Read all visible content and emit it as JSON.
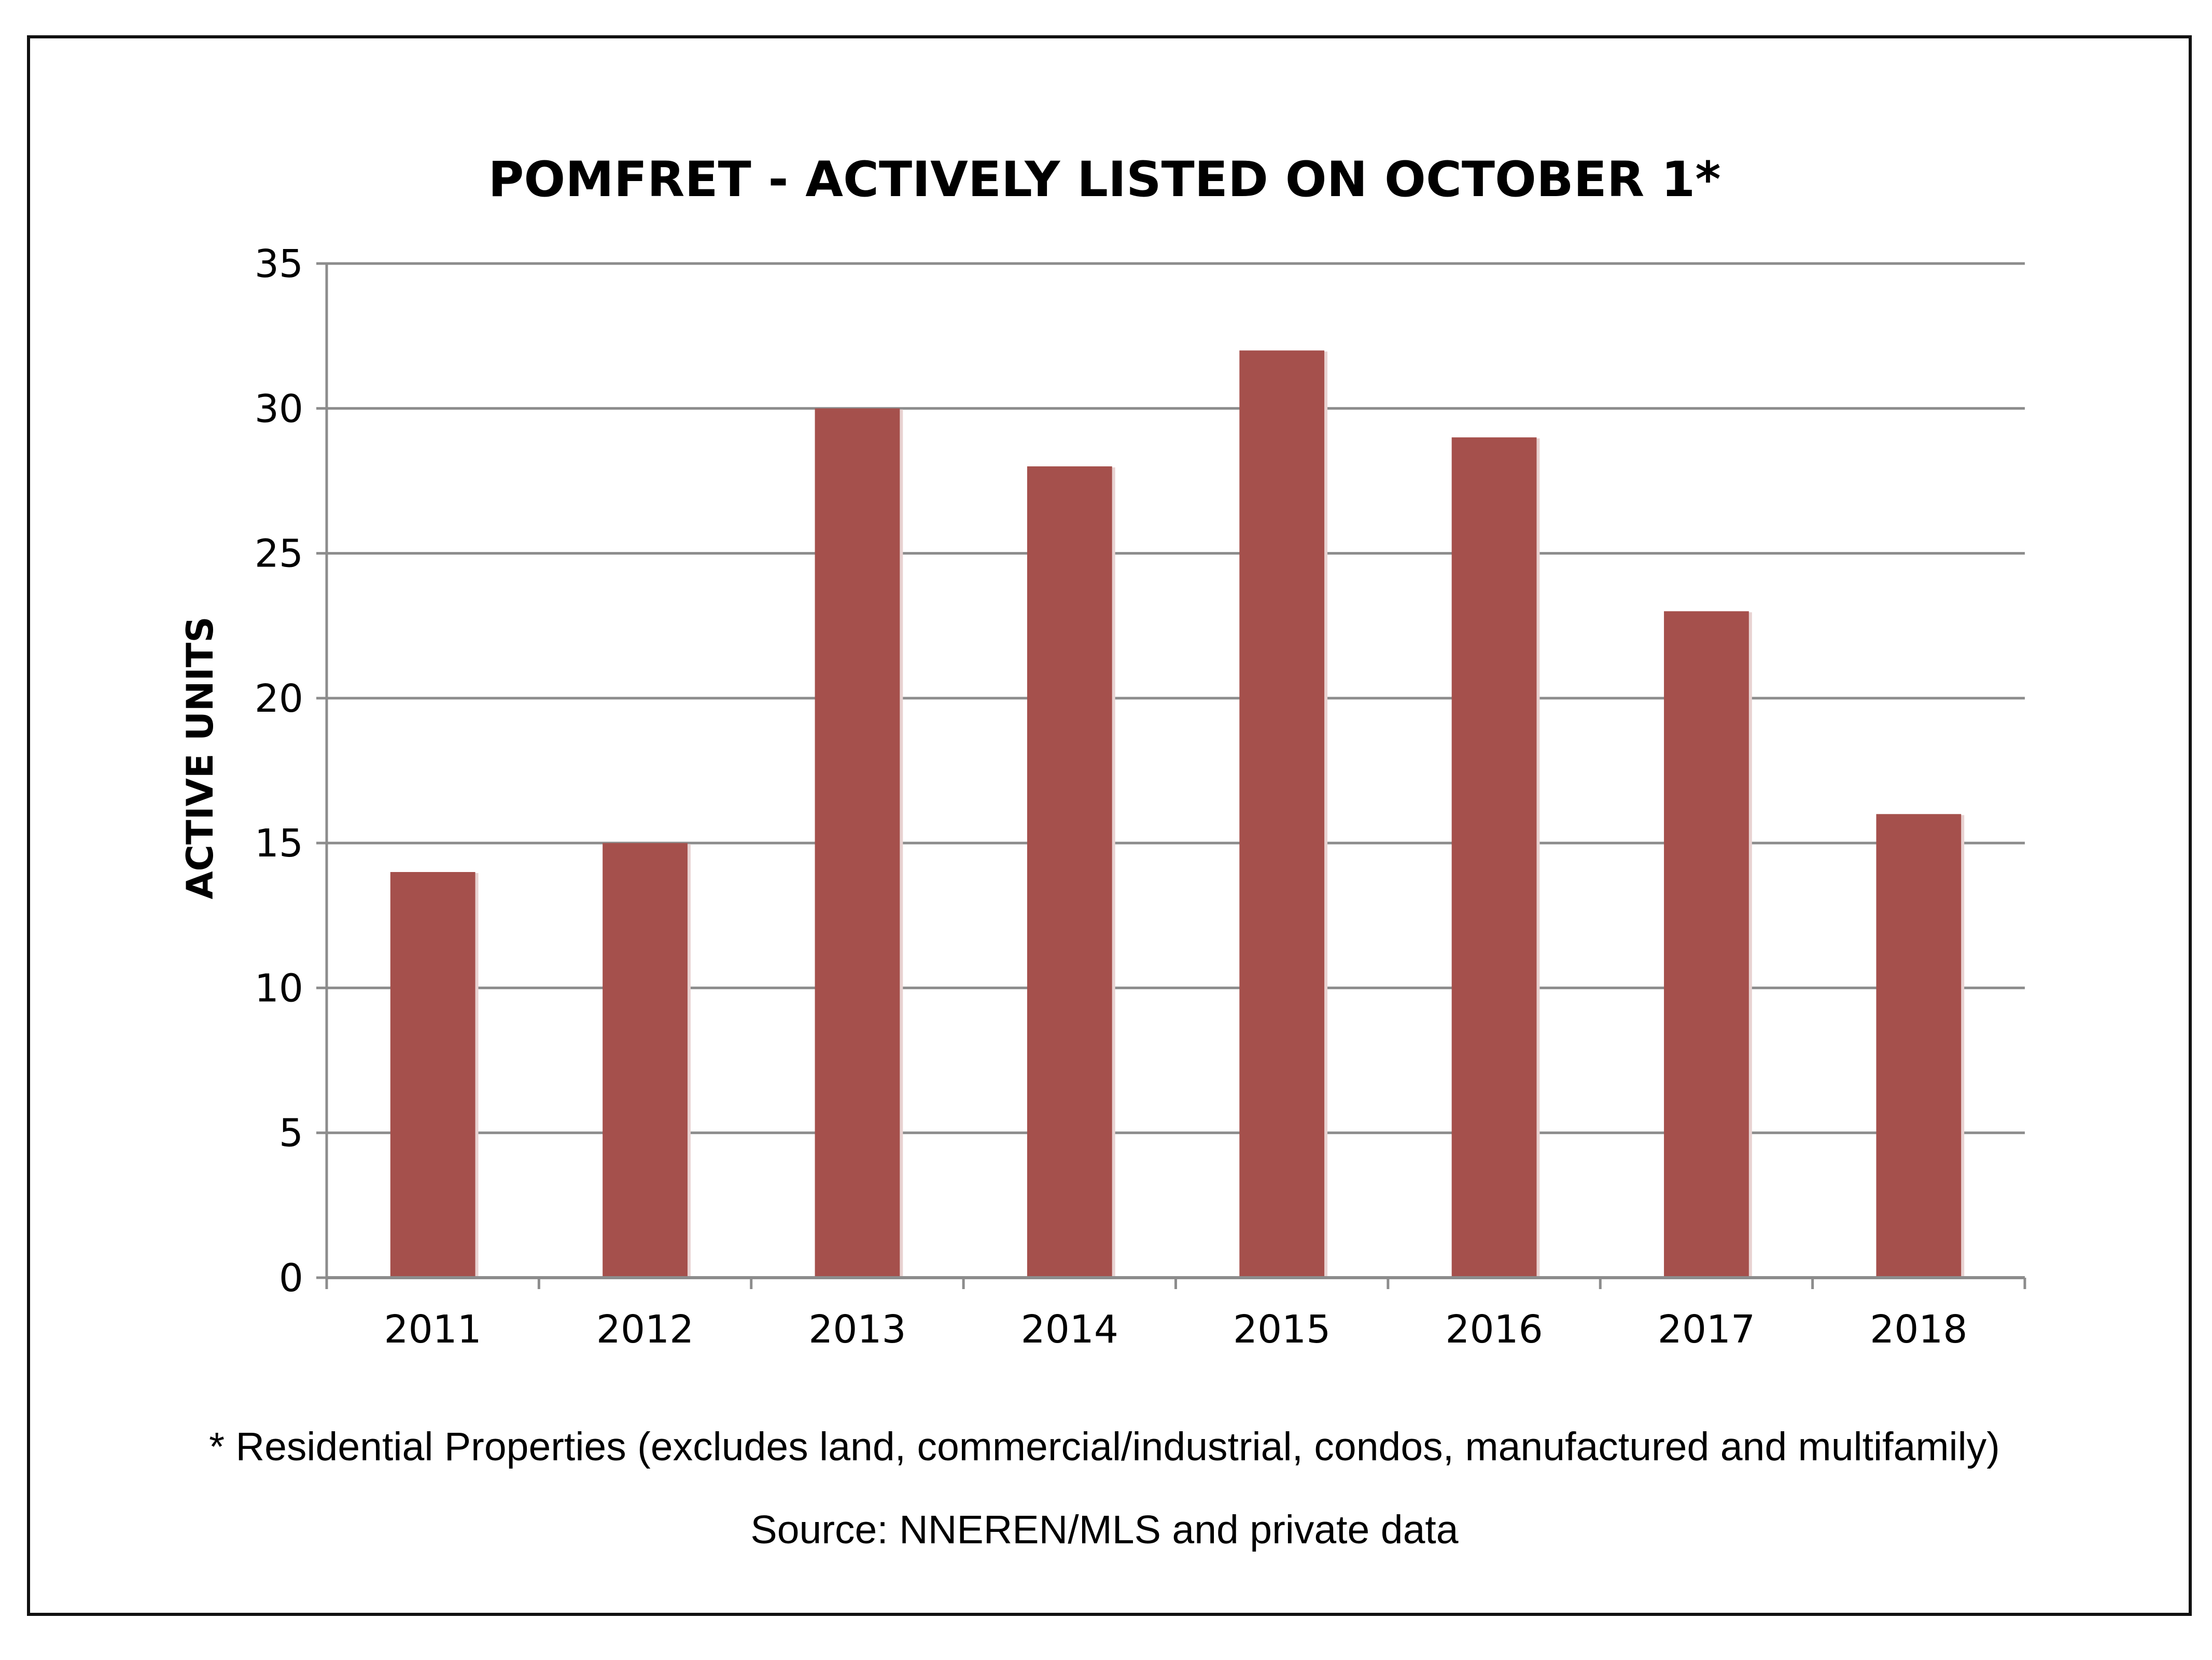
{
  "chart_data": {
    "type": "bar",
    "title": "POMFRET - ACTIVELY LISTED ON OCTOBER 1*",
    "xlabel": "",
    "ylabel": "ACTIVE UNITS",
    "categories": [
      "2011",
      "2012",
      "2013",
      "2014",
      "2015",
      "2016",
      "2017",
      "2018"
    ],
    "values": [
      14,
      15,
      30,
      28,
      32,
      29,
      23,
      16
    ],
    "ylim": [
      0,
      35
    ],
    "yticks": [
      0,
      5,
      10,
      15,
      20,
      25,
      30,
      35
    ],
    "ytick_labels": [
      "0",
      "5",
      "10",
      "15",
      "20",
      "25",
      "30",
      "35"
    ],
    "grid": true,
    "legend": "none",
    "bar_color": "#A5504C",
    "grid_color": "#8C8C8C"
  },
  "footnotes": {
    "note": "* Residential Properties (excludes land, commercial/industrial, condos, manufactured and multifamily)",
    "source": "Source: NNEREN/MLS and private data"
  }
}
